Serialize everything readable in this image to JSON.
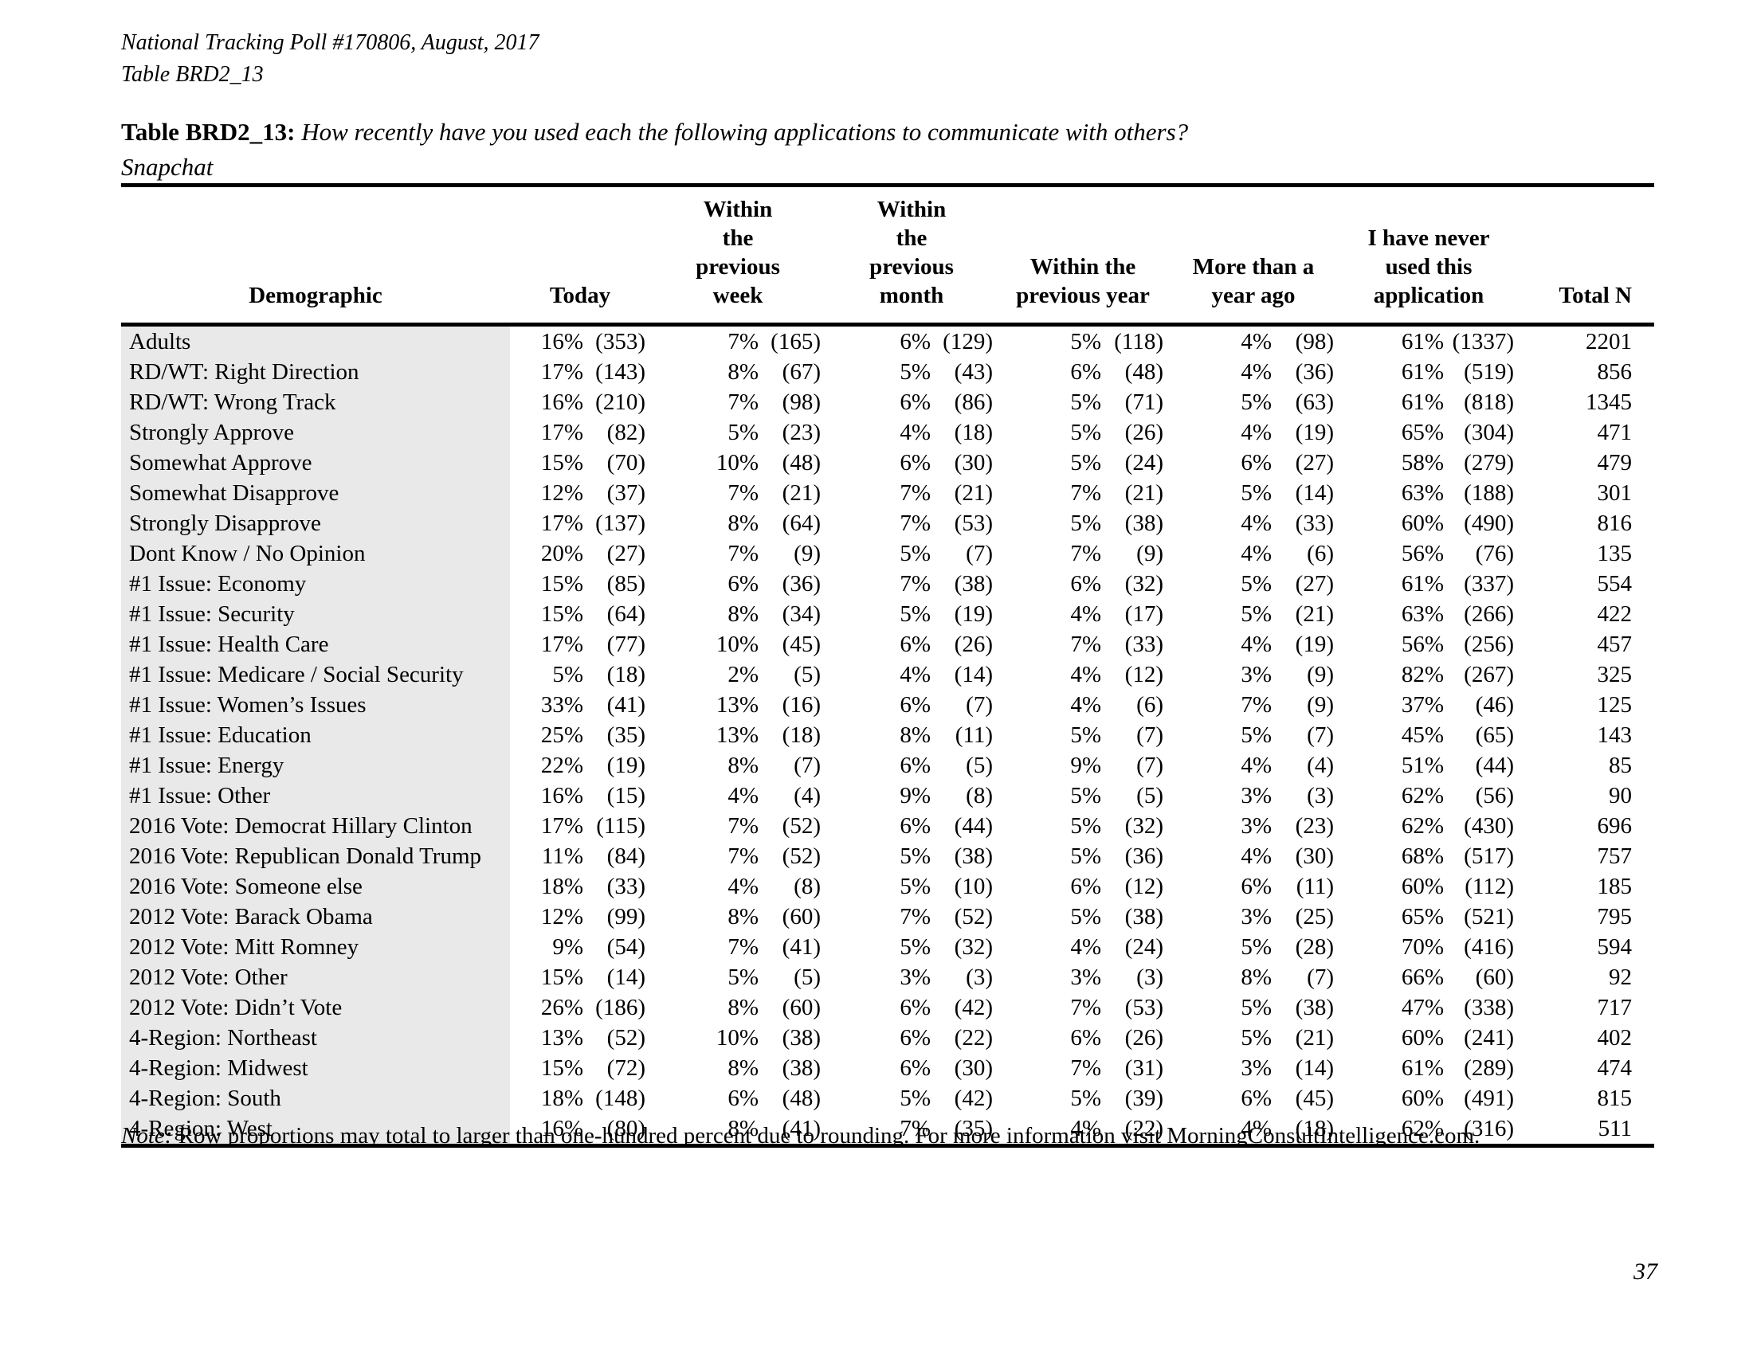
{
  "document": {
    "poll_line": "National Tracking Poll #170806, August, 2017",
    "table_line": "Table BRD2_13",
    "title_bold": "Table BRD2_13:",
    "title_question": "How recently have you used each the following applications to communicate with others?",
    "title_sub": "Snapchat",
    "note_label": "Note:",
    "note_body": "Row proportions may total to larger than one-hundred percent due to rounding. For more information visit MorningConsultIntelligence.com.",
    "page_number": "37"
  },
  "table": {
    "columns": [
      "Demographic",
      "Today",
      "Within the previous week",
      "Within the previous month",
      "Within the previous year",
      "More than a year ago",
      "I have never used this application",
      "Total N"
    ],
    "rows": [
      [
        "Adults",
        "16%",
        "(353)",
        "7%",
        "(165)",
        "6%",
        "(129)",
        "5%",
        "(118)",
        "4%",
        "(98)",
        "61%",
        "(1337)",
        "2201"
      ],
      [
        "RD/WT: Right Direction",
        "17%",
        "(143)",
        "8%",
        "(67)",
        "5%",
        "(43)",
        "6%",
        "(48)",
        "4%",
        "(36)",
        "61%",
        "(519)",
        "856"
      ],
      [
        "RD/WT: Wrong Track",
        "16%",
        "(210)",
        "7%",
        "(98)",
        "6%",
        "(86)",
        "5%",
        "(71)",
        "5%",
        "(63)",
        "61%",
        "(818)",
        "1345"
      ],
      [
        "Strongly Approve",
        "17%",
        "(82)",
        "5%",
        "(23)",
        "4%",
        "(18)",
        "5%",
        "(26)",
        "4%",
        "(19)",
        "65%",
        "(304)",
        "471"
      ],
      [
        "Somewhat Approve",
        "15%",
        "(70)",
        "10%",
        "(48)",
        "6%",
        "(30)",
        "5%",
        "(24)",
        "6%",
        "(27)",
        "58%",
        "(279)",
        "479"
      ],
      [
        "Somewhat Disapprove",
        "12%",
        "(37)",
        "7%",
        "(21)",
        "7%",
        "(21)",
        "7%",
        "(21)",
        "5%",
        "(14)",
        "63%",
        "(188)",
        "301"
      ],
      [
        "Strongly Disapprove",
        "17%",
        "(137)",
        "8%",
        "(64)",
        "7%",
        "(53)",
        "5%",
        "(38)",
        "4%",
        "(33)",
        "60%",
        "(490)",
        "816"
      ],
      [
        "Dont Know / No Opinion",
        "20%",
        "(27)",
        "7%",
        "(9)",
        "5%",
        "(7)",
        "7%",
        "(9)",
        "4%",
        "(6)",
        "56%",
        "(76)",
        "135"
      ],
      [
        "#1 Issue: Economy",
        "15%",
        "(85)",
        "6%",
        "(36)",
        "7%",
        "(38)",
        "6%",
        "(32)",
        "5%",
        "(27)",
        "61%",
        "(337)",
        "554"
      ],
      [
        "#1 Issue: Security",
        "15%",
        "(64)",
        "8%",
        "(34)",
        "5%",
        "(19)",
        "4%",
        "(17)",
        "5%",
        "(21)",
        "63%",
        "(266)",
        "422"
      ],
      [
        "#1 Issue: Health Care",
        "17%",
        "(77)",
        "10%",
        "(45)",
        "6%",
        "(26)",
        "7%",
        "(33)",
        "4%",
        "(19)",
        "56%",
        "(256)",
        "457"
      ],
      [
        "#1 Issue: Medicare / Social Security",
        "5%",
        "(18)",
        "2%",
        "(5)",
        "4%",
        "(14)",
        "4%",
        "(12)",
        "3%",
        "(9)",
        "82%",
        "(267)",
        "325"
      ],
      [
        "#1 Issue: Women’s Issues",
        "33%",
        "(41)",
        "13%",
        "(16)",
        "6%",
        "(7)",
        "4%",
        "(6)",
        "7%",
        "(9)",
        "37%",
        "(46)",
        "125"
      ],
      [
        "#1 Issue: Education",
        "25%",
        "(35)",
        "13%",
        "(18)",
        "8%",
        "(11)",
        "5%",
        "(7)",
        "5%",
        "(7)",
        "45%",
        "(65)",
        "143"
      ],
      [
        "#1 Issue: Energy",
        "22%",
        "(19)",
        "8%",
        "(7)",
        "6%",
        "(5)",
        "9%",
        "(7)",
        "4%",
        "(4)",
        "51%",
        "(44)",
        "85"
      ],
      [
        "#1 Issue: Other",
        "16%",
        "(15)",
        "4%",
        "(4)",
        "9%",
        "(8)",
        "5%",
        "(5)",
        "3%",
        "(3)",
        "62%",
        "(56)",
        "90"
      ],
      [
        "2016 Vote: Democrat Hillary Clinton",
        "17%",
        "(115)",
        "7%",
        "(52)",
        "6%",
        "(44)",
        "5%",
        "(32)",
        "3%",
        "(23)",
        "62%",
        "(430)",
        "696"
      ],
      [
        "2016 Vote: Republican Donald Trump",
        "11%",
        "(84)",
        "7%",
        "(52)",
        "5%",
        "(38)",
        "5%",
        "(36)",
        "4%",
        "(30)",
        "68%",
        "(517)",
        "757"
      ],
      [
        "2016 Vote: Someone else",
        "18%",
        "(33)",
        "4%",
        "(8)",
        "5%",
        "(10)",
        "6%",
        "(12)",
        "6%",
        "(11)",
        "60%",
        "(112)",
        "185"
      ],
      [
        "2012 Vote: Barack Obama",
        "12%",
        "(99)",
        "8%",
        "(60)",
        "7%",
        "(52)",
        "5%",
        "(38)",
        "3%",
        "(25)",
        "65%",
        "(521)",
        "795"
      ],
      [
        "2012 Vote: Mitt Romney",
        "9%",
        "(54)",
        "7%",
        "(41)",
        "5%",
        "(32)",
        "4%",
        "(24)",
        "5%",
        "(28)",
        "70%",
        "(416)",
        "594"
      ],
      [
        "2012 Vote: Other",
        "15%",
        "(14)",
        "5%",
        "(5)",
        "3%",
        "(3)",
        "3%",
        "(3)",
        "8%",
        "(7)",
        "66%",
        "(60)",
        "92"
      ],
      [
        "2012 Vote: Didn’t Vote",
        "26%",
        "(186)",
        "8%",
        "(60)",
        "6%",
        "(42)",
        "7%",
        "(53)",
        "5%",
        "(38)",
        "47%",
        "(338)",
        "717"
      ],
      [
        "4-Region: Northeast",
        "13%",
        "(52)",
        "10%",
        "(38)",
        "6%",
        "(22)",
        "6%",
        "(26)",
        "5%",
        "(21)",
        "60%",
        "(241)",
        "402"
      ],
      [
        "4-Region: Midwest",
        "15%",
        "(72)",
        "8%",
        "(38)",
        "6%",
        "(30)",
        "7%",
        "(31)",
        "3%",
        "(14)",
        "61%",
        "(289)",
        "474"
      ],
      [
        "4-Region: South",
        "18%",
        "(148)",
        "6%",
        "(48)",
        "5%",
        "(42)",
        "5%",
        "(39)",
        "6%",
        "(45)",
        "60%",
        "(491)",
        "815"
      ],
      [
        "4-Region: West",
        "16%",
        "(80)",
        "8%",
        "(41)",
        "7%",
        "(35)",
        "4%",
        "(22)",
        "4%",
        "(18)",
        "62%",
        "(316)",
        "511"
      ]
    ]
  }
}
